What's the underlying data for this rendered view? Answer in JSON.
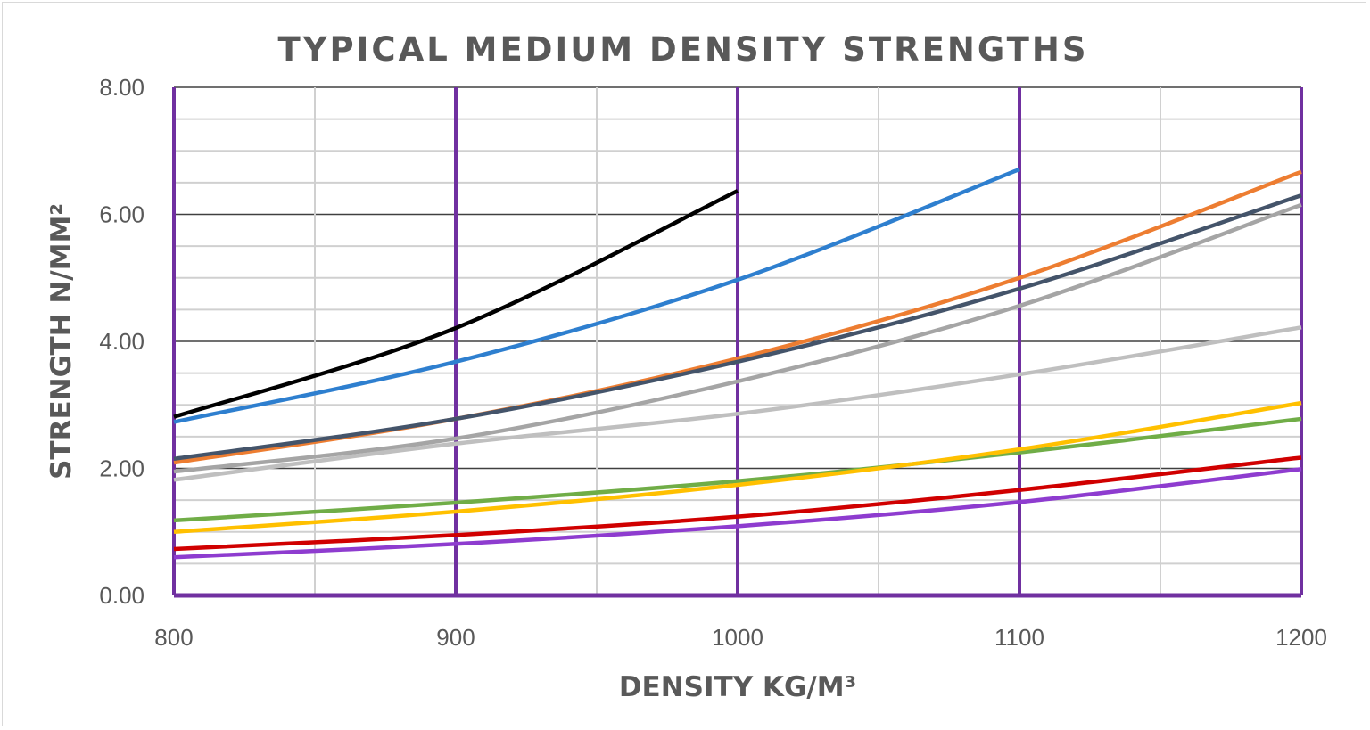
{
  "chart_data": {
    "type": "line",
    "title": "TYPICAL MEDIUM DENSITY STRENGTHS",
    "xlabel": "DENSITY KG/M³",
    "ylabel": "STRENGTH N/MM²",
    "xlim": [
      800,
      1200
    ],
    "ylim": [
      0,
      8
    ],
    "x_ticks": [
      "800",
      "900",
      "1000",
      "1100",
      "1200"
    ],
    "y_ticks": [
      "0.00",
      "2.00",
      "4.00",
      "6.00",
      "8.00"
    ],
    "grid": true,
    "legend": "none",
    "accent_color": "#7030a0",
    "series": [
      {
        "color": "#000000",
        "x": [
          800,
          900,
          1000
        ],
        "y": [
          2.81,
          4.21,
          6.37
        ]
      },
      {
        "color": "#2e7fcf",
        "x": [
          800,
          900,
          1000,
          1100
        ],
        "y": [
          2.73,
          3.68,
          4.97,
          6.71
        ]
      },
      {
        "color": "#ed7d31",
        "x": [
          800,
          900,
          1000,
          1100,
          1200
        ],
        "y": [
          2.09,
          2.78,
          3.73,
          5.0,
          6.67
        ]
      },
      {
        "color": "#44546a",
        "x": [
          800,
          900,
          1000,
          1100,
          1200
        ],
        "y": [
          2.15,
          2.78,
          3.68,
          4.83,
          6.3
        ]
      },
      {
        "color": "#a5a5a5",
        "x": [
          800,
          900,
          1000,
          1100,
          1200
        ],
        "y": [
          1.95,
          2.47,
          3.37,
          4.56,
          6.15
        ]
      },
      {
        "color": "#bfbfbf",
        "x": [
          800,
          900,
          1000,
          1100,
          1200
        ],
        "y": [
          1.82,
          2.39,
          2.86,
          3.48,
          4.22
        ]
      },
      {
        "color": "#70ad47",
        "x": [
          800,
          900,
          1000,
          1100,
          1200
        ],
        "y": [
          1.18,
          1.46,
          1.8,
          2.25,
          2.78
        ]
      },
      {
        "color": "#ffc000",
        "x": [
          800,
          900,
          1000,
          1100,
          1200
        ],
        "y": [
          1.0,
          1.32,
          1.74,
          2.3,
          3.03
        ]
      },
      {
        "color": "#d00000",
        "x": [
          800,
          900,
          1000,
          1100,
          1200
        ],
        "y": [
          0.73,
          0.95,
          1.24,
          1.66,
          2.17
        ]
      },
      {
        "color": "#8e3ccf",
        "x": [
          800,
          900,
          1000,
          1100,
          1200
        ],
        "y": [
          0.6,
          0.81,
          1.09,
          1.47,
          1.99
        ]
      }
    ]
  }
}
